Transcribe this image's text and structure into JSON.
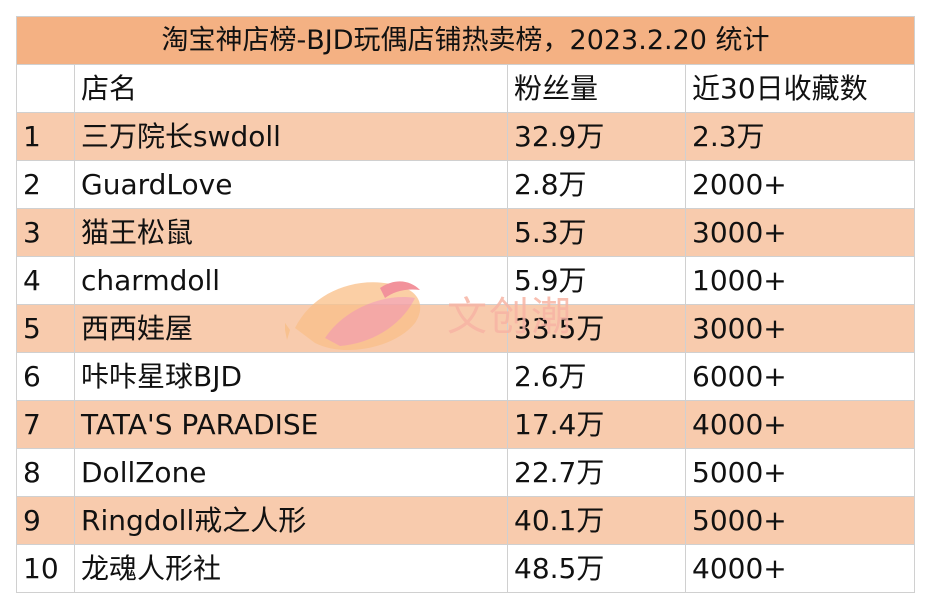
{
  "title": "淘宝神店榜-BJD玩偶店铺热卖榜，2023.2.20 统计",
  "columns": [
    "",
    "店名",
    "粉丝量",
    "近30日收藏数"
  ],
  "rows": [
    [
      "1",
      "三万院长swdoll",
      "32.9万",
      "2.3万"
    ],
    [
      "2",
      "GuardLove",
      "2.8万",
      "2000+"
    ],
    [
      "3",
      "猫王松鼠",
      "5.3万",
      "3000+"
    ],
    [
      "4",
      "charmdoll",
      "5.9万",
      "1000+"
    ],
    [
      "5",
      "西西娃屋",
      "33.5万",
      "3000+"
    ],
    [
      "6",
      "咔咔星球BJD",
      "2.6万",
      "6000+"
    ],
    [
      "7",
      "TATA'S PARADISE",
      "17.4万",
      "4000+"
    ],
    [
      "8",
      "DollZone",
      "22.7万",
      "5000+"
    ],
    [
      "9",
      "Ringdoll戒之人形",
      "40.1万",
      "5000+"
    ],
    [
      "10",
      "龙魂人形社",
      "48.5万",
      "4000+"
    ]
  ],
  "watermark": {
    "text": "文创潮",
    "logo": "fish-leaf-logo-icon"
  },
  "colors": {
    "title_bg": "#f4b183",
    "band": "#f8cbad",
    "grid": "#d0d0d0"
  }
}
